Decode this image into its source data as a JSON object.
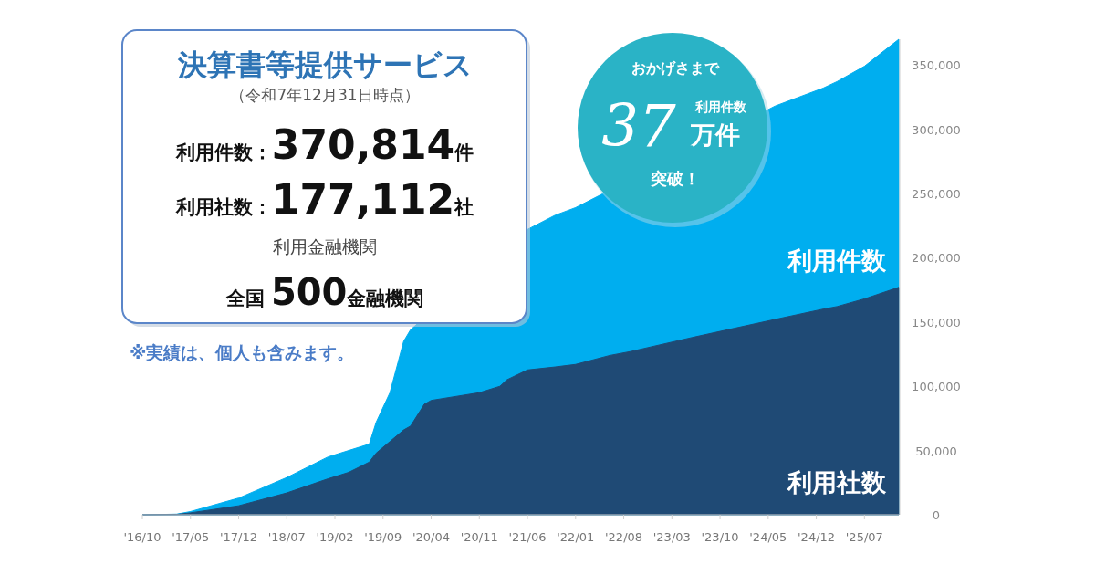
{
  "chart_data": {
    "type": "area",
    "title": "決算書等提供サービス",
    "subtitle": "（令和7年12月31日時点）",
    "x": [
      "2016-10",
      "2017-03",
      "2017-05",
      "2017-12",
      "2018-07",
      "2019-01",
      "2019-04",
      "2019-07",
      "2019-08",
      "2019-10",
      "2019-12",
      "2020-01",
      "2020-03",
      "2020-04",
      "2020-11",
      "2021-02",
      "2021-03",
      "2021-06",
      "2021-10",
      "2022-01",
      "2022-06",
      "2022-09",
      "2023-06",
      "2023-12",
      "2024-06",
      "2025-01",
      "2025-03",
      "2025-07",
      "2025-12"
    ],
    "series": [
      {
        "name": "利用件数",
        "color": "#00aeef",
        "values": [
          0,
          500,
          2500,
          13000,
          29000,
          45000,
          50000,
          55000,
          72000,
          95000,
          135000,
          144000,
          null,
          null,
          null,
          null,
          null,
          222000,
          233000,
          239000,
          null,
          null,
          null,
          null,
          318000,
          332000,
          337000,
          349000,
          370000
        ]
      },
      {
        "name": "利用社数",
        "color": "#1f4a75",
        "values": [
          0,
          300,
          1500,
          7000,
          17000,
          28000,
          33000,
          41000,
          48000,
          57000,
          66000,
          69000,
          86000,
          89000,
          95000,
          100000,
          105000,
          112700,
          115000,
          117000,
          124000,
          127000,
          138000,
          145000,
          152000,
          160000,
          162000,
          168000,
          177000
        ]
      }
    ],
    "xlim": [
      "2016-10",
      "2025-12"
    ],
    "xticks": [
      {
        "value": "2016-10",
        "label": "'16/10"
      },
      {
        "value": "2017-05",
        "label": "'17/05"
      },
      {
        "value": "2017-12",
        "label": "'17/12"
      },
      {
        "value": "2018-07",
        "label": "'18/07"
      },
      {
        "value": "2019-02",
        "label": "'19/02"
      },
      {
        "value": "2019-09",
        "label": "'19/09"
      },
      {
        "value": "2020-04",
        "label": "'20/04"
      },
      {
        "value": "2020-11",
        "label": "'20/11"
      },
      {
        "value": "2021-06",
        "label": "'21/06"
      },
      {
        "value": "2022-01",
        "label": "'22/01"
      },
      {
        "value": "2022-08",
        "label": "'22/08"
      },
      {
        "value": "2023-03",
        "label": "'23/03"
      },
      {
        "value": "2023-10",
        "label": "'23/10"
      },
      {
        "value": "2024-05",
        "label": "'24/05"
      },
      {
        "value": "2024-12",
        "label": "'24/12"
      },
      {
        "value": "2025-07",
        "label": "'25/07"
      }
    ],
    "yticks": [
      0,
      {
        "value": 50000,
        "label": "50,000"
      },
      {
        "value": 100000,
        "label": "100,000"
      },
      {
        "value": 150000,
        "label": "150,000"
      },
      {
        "value": 200000,
        "label": "200,000"
      },
      {
        "value": 250000,
        "label": "250,000"
      },
      {
        "value": 300000,
        "label": "300,000"
      },
      {
        "value": 350000,
        "label": "350,000"
      }
    ],
    "ylim": [
      0,
      370000
    ],
    "grid": false,
    "annotations": [
      "利用件数：370,814件",
      "利用社数：177,112社",
      "利用金融機関",
      "全国 500金融機関",
      "※実績は、個人も含みます。",
      "おかげさまで",
      "37",
      "利用件数",
      "万件",
      "突破！"
    ]
  }
}
